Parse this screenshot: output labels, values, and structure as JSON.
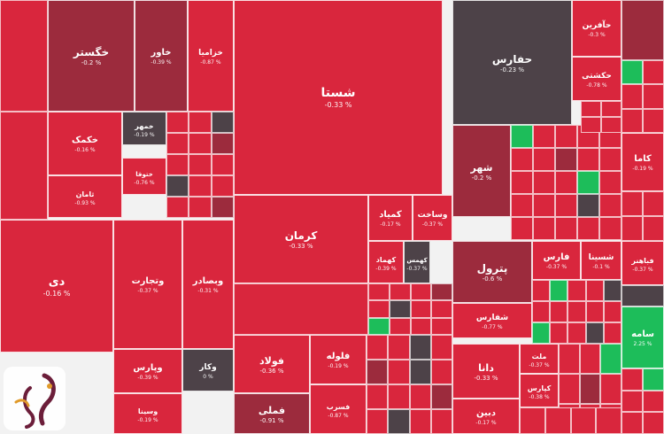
{
  "chart_data": {
    "type": "heatmap",
    "title": "",
    "colors": {
      "red": "#d9263d",
      "dark_red": "#9c2b3d",
      "neutral": "#4d4248",
      "green": "#1dbd5a",
      "border": "#ffffff"
    },
    "tiles": [
      {
        "name": "خگستر",
        "change": "-0.2 %",
        "tone": "dark_red"
      },
      {
        "name": "خاور",
        "change": "-0.39 %",
        "tone": "dark_red"
      },
      {
        "name": "خزامیا",
        "change": "-0.87 %",
        "tone": "red"
      },
      {
        "name": "شستا",
        "change": "-0.33 %",
        "tone": "red"
      },
      {
        "name": "حفارس",
        "change": "-0.23 %",
        "tone": "neutral"
      },
      {
        "name": "حآفرین",
        "change": "-0.3 %",
        "tone": "red"
      },
      {
        "name": "حکشتی",
        "change": "-0.78 %",
        "tone": "red"
      },
      {
        "name": "خکمک",
        "change": "-0.16 %",
        "tone": "red"
      },
      {
        "name": "خمهر",
        "change": "-0.19 %",
        "tone": "neutral"
      },
      {
        "name": "ختوقا",
        "change": "-0.76 %",
        "tone": "red"
      },
      {
        "name": "ثامان",
        "change": "-0.93 %",
        "tone": "red"
      },
      {
        "name": "شهر",
        "change": "-0.2 %",
        "tone": "dark_red"
      },
      {
        "name": "کاما",
        "change": "-0.19 %",
        "tone": "red"
      },
      {
        "name": "کرمان",
        "change": "-0.33 %",
        "tone": "red"
      },
      {
        "name": "کمیاد",
        "change": "-0.17 %",
        "tone": "red"
      },
      {
        "name": "وساخت",
        "change": "-0.37 %",
        "tone": "red"
      },
      {
        "name": "کهماد",
        "change": "-0.39 %",
        "tone": "red"
      },
      {
        "name": "کهمس",
        "change": "-0.37 %",
        "tone": "neutral"
      },
      {
        "name": "دی",
        "change": "-0.16 %",
        "tone": "red"
      },
      {
        "name": "وتجارت",
        "change": "-0.37 %",
        "tone": "red"
      },
      {
        "name": "وبصادر",
        "change": "-0.31 %",
        "tone": "red"
      },
      {
        "name": "فولاد",
        "change": "-0.36 %",
        "tone": "red"
      },
      {
        "name": "فملی",
        "change": "-0.91 %",
        "tone": "dark_red"
      },
      {
        "name": "فلوله",
        "change": "-0.19 %",
        "tone": "red"
      },
      {
        "name": "فسرب",
        "change": "-0.87 %",
        "tone": "red"
      },
      {
        "name": "وپارس",
        "change": "-0.39 %",
        "tone": "red"
      },
      {
        "name": "وکار",
        "change": "0 %",
        "tone": "neutral"
      },
      {
        "name": "وسینا",
        "change": "-0.19 %",
        "tone": "red"
      },
      {
        "name": "پترول",
        "change": "-0.6 %",
        "tone": "dark_red"
      },
      {
        "name": "فارس",
        "change": "-0.37 %",
        "tone": "red"
      },
      {
        "name": "شسینا",
        "change": "-0.1 %",
        "tone": "red"
      },
      {
        "name": "شفارس",
        "change": "-0.77 %",
        "tone": "red"
      },
      {
        "name": "دانا",
        "change": "-0.33 %",
        "tone": "red"
      },
      {
        "name": "ملت",
        "change": "-0.37 %",
        "tone": "red"
      },
      {
        "name": "کپارس",
        "change": "-0.38 %",
        "tone": "red"
      },
      {
        "name": "دبین",
        "change": "-0.17 %",
        "tone": "red"
      },
      {
        "name": "سامه",
        "change": "2.25 %",
        "tone": "green"
      },
      {
        "name": "فباهنر",
        "change": "-0.37 %",
        "tone": "red"
      }
    ]
  }
}
